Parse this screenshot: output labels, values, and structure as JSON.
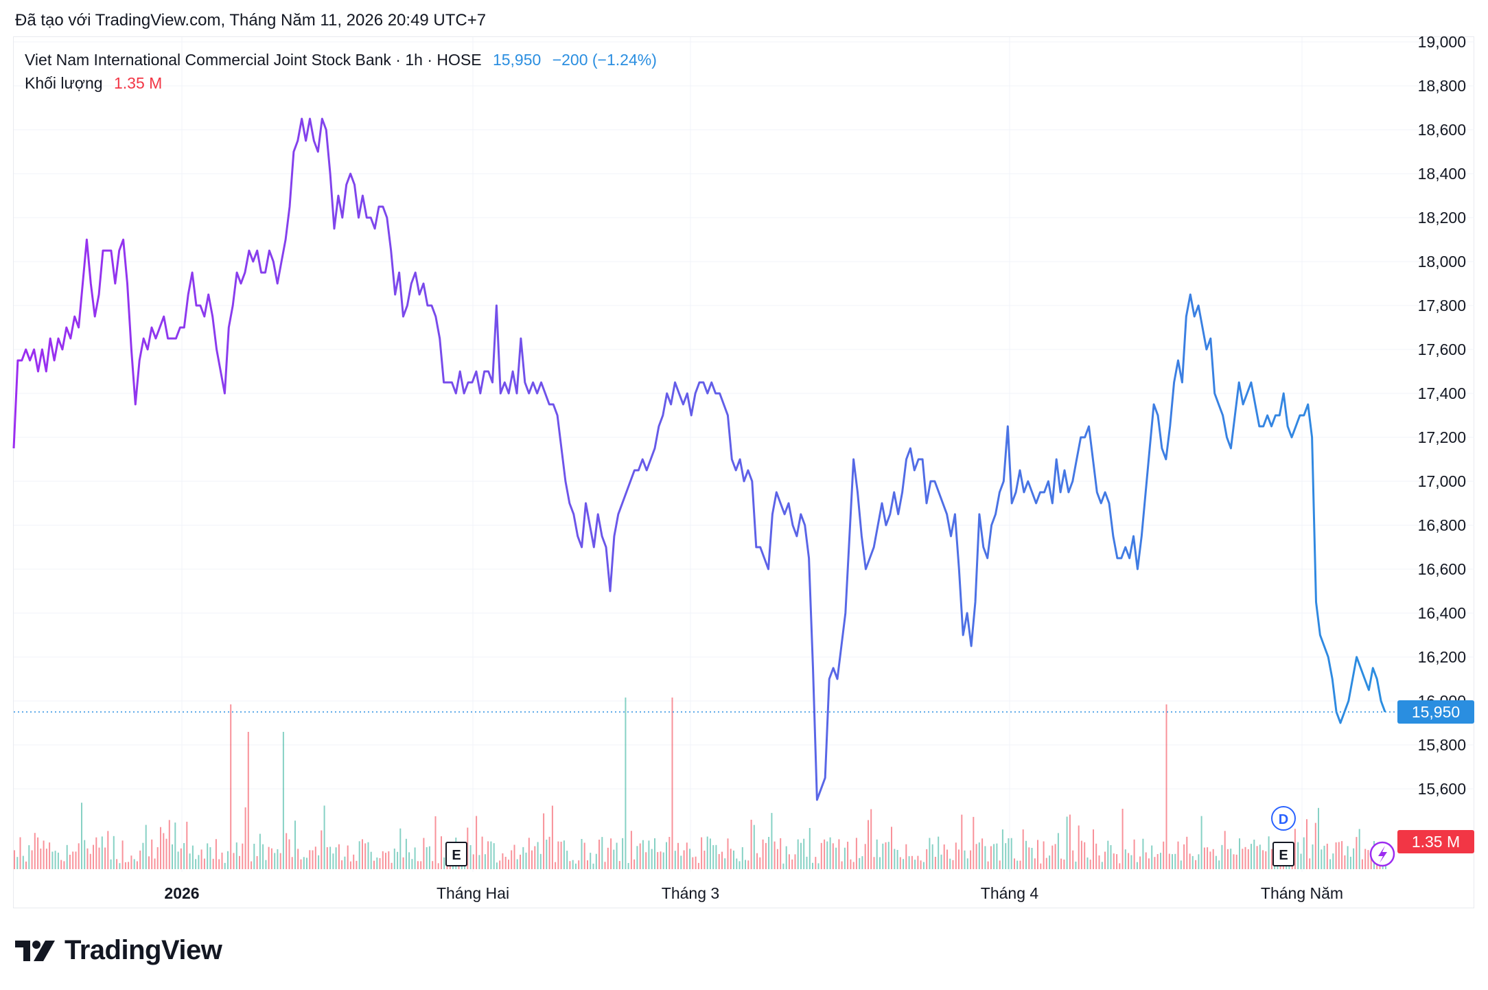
{
  "header": {
    "created_line": "Đã tạo với TradingView.com, Tháng Năm 11, 2026 20:49 UTC+7"
  },
  "legend": {
    "symbol_line": "Viet Nam International Commercial Joint Stock Bank · 1h · HOSE",
    "last_price": "15,950",
    "change": "−200 (−1.24%)",
    "volume_label": "Khối lượng",
    "volume_value": "1.35 M"
  },
  "price_axis": {
    "ticks": [
      "19,000",
      "18,800",
      "18,600",
      "18,400",
      "18,200",
      "18,000",
      "17,800",
      "17,600",
      "17,400",
      "17,200",
      "17,000",
      "16,800",
      "16,600",
      "16,400",
      "16,200",
      "16,000",
      "15,800",
      "15,600"
    ],
    "last_price_tag": "15,950",
    "volume_tag": "1.35 M"
  },
  "time_axis": {
    "labels": [
      "2026",
      "Tháng Hai",
      "Tháng 3",
      "Tháng 4",
      "Tháng Năm"
    ]
  },
  "markers": {
    "earnings_1": "E",
    "earnings_2": "E",
    "dividend": "D"
  },
  "brand": {
    "name": "TradingView"
  },
  "colors": {
    "line_start": "#9c2cf0",
    "line_end": "#2a8ee0",
    "volume_up": "#22ab94",
    "volume_down": "#f23645",
    "last_price_tag": "#2a8ee0",
    "volume_tag": "#f23645"
  },
  "chart_data": {
    "type": "line",
    "title": "Viet Nam International Commercial Joint Stock Bank · 1h · HOSE",
    "ylim": [
      15550,
      19000
    ],
    "y_ticks": [
      19000,
      18800,
      18600,
      18400,
      18200,
      18000,
      17800,
      17600,
      17400,
      17200,
      17000,
      16800,
      16600,
      16400,
      16200,
      16000,
      15800,
      15600
    ],
    "x_labels": [
      "2026",
      "Tháng Hai",
      "Tháng 3",
      "Tháng 4",
      "Tháng Năm"
    ],
    "last_value": 15950,
    "grid": true,
    "series": [
      {
        "values": [
          17150,
          17550,
          17550,
          17600,
          17550,
          17600,
          17500,
          17600,
          17500,
          17650,
          17550,
          17650,
          17600,
          17700,
          17650,
          17750,
          17700,
          17900,
          18100,
          17900,
          17750,
          17850,
          18050,
          18050,
          18050,
          17900,
          18050,
          18100,
          17900,
          17600,
          17350,
          17550,
          17650,
          17600,
          17700,
          17650,
          17700,
          17750,
          17650,
          17650,
          17650,
          17700,
          17700,
          17850,
          17950,
          17800,
          17800,
          17750,
          17850,
          17750,
          17600,
          17500,
          17400,
          17700,
          17800,
          17950,
          17900,
          17950,
          18050,
          18000,
          18050,
          17950,
          17950,
          18050,
          18000,
          17900,
          18000,
          18100,
          18250,
          18500,
          18550,
          18650,
          18550,
          18650,
          18550,
          18500,
          18650,
          18600,
          18400,
          18150,
          18300,
          18200,
          18350,
          18400,
          18350,
          18200,
          18300,
          18200,
          18200,
          18150,
          18250,
          18250,
          18200,
          18050,
          17850,
          17950,
          17750,
          17800,
          17900,
          17950,
          17850,
          17900,
          17800,
          17800,
          17750,
          17650,
          17450,
          17450,
          17450,
          17400,
          17500,
          17400,
          17450,
          17450,
          17500,
          17400,
          17500,
          17500,
          17450,
          17800,
          17400,
          17450,
          17400,
          17500,
          17400,
          17650,
          17450,
          17400,
          17450,
          17400,
          17450,
          17400,
          17350,
          17350,
          17300,
          17150,
          17000,
          16900,
          16850,
          16750,
          16700,
          16900,
          16800,
          16700,
          16850,
          16750,
          16700,
          16500,
          16750,
          16850,
          16900,
          16950,
          17000,
          17050,
          17050,
          17100,
          17050,
          17100,
          17150,
          17250,
          17300,
          17400,
          17350,
          17450,
          17400,
          17350,
          17400,
          17300,
          17400,
          17450,
          17450,
          17400,
          17450,
          17400,
          17400,
          17350,
          17300,
          17100,
          17050,
          17100,
          17000,
          17050,
          17000,
          16700,
          16700,
          16650,
          16600,
          16850,
          16950,
          16900,
          16850,
          16900,
          16800,
          16750,
          16850,
          16800,
          16650,
          16150,
          15550,
          15600,
          15650,
          16100,
          16150,
          16100,
          16250,
          16400,
          16750,
          17100,
          16950,
          16750,
          16600,
          16650,
          16700,
          16800,
          16900,
          16800,
          16850,
          16950,
          16850,
          16950,
          17100,
          17150,
          17050,
          17100,
          17100,
          16900,
          17000,
          17000,
          16950,
          16900,
          16850,
          16750,
          16850,
          16600,
          16300,
          16400,
          16250,
          16450,
          16850,
          16700,
          16650,
          16800,
          16850,
          16950,
          17000,
          17250,
          16900,
          16950,
          17050,
          16950,
          17000,
          16950,
          16900,
          16950,
          16950,
          17000,
          16900,
          17100,
          16950,
          17050,
          16950,
          17000,
          17100,
          17200,
          17200,
          17250,
          17100,
          16950,
          16900,
          16950,
          16900,
          16750,
          16650,
          16650,
          16700,
          16650,
          16750,
          16600,
          16750,
          16950,
          17150,
          17350,
          17300,
          17150,
          17100,
          17250,
          17450,
          17550,
          17450,
          17750,
          17850,
          17750,
          17800,
          17700,
          17600,
          17650,
          17400,
          17350,
          17300,
          17200,
          17150,
          17300,
          17450,
          17350,
          17400,
          17450,
          17350,
          17250,
          17250,
          17300,
          17250,
          17300,
          17300,
          17400,
          17250,
          17200,
          17250,
          17300,
          17300,
          17350,
          17200,
          16450,
          16300,
          16250,
          16200,
          16100,
          15950,
          15900,
          15950,
          16000,
          16100,
          16200,
          16150,
          16100,
          16050,
          16150,
          16100,
          16000,
          15950
        ],
        "volume_max_m": 4.6,
        "volume_last_m": 1.35
      }
    ]
  }
}
